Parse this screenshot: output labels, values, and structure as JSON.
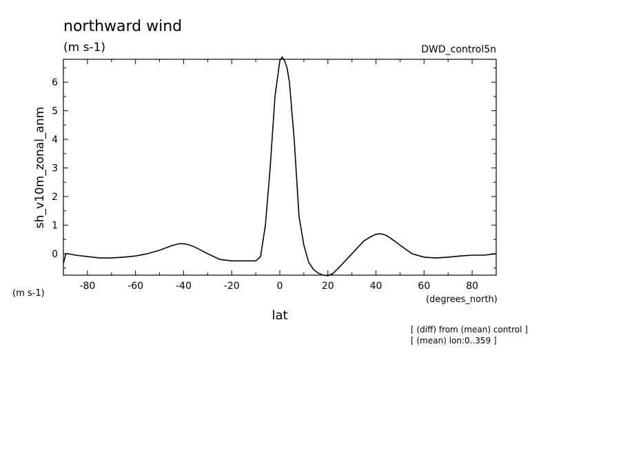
{
  "chart_data": {
    "type": "line",
    "title": "northward wind",
    "units": "(m s-1)",
    "experiment": "DWD_control5n",
    "ylabel": "sh_v10m_zonal_anm",
    "y_units_label": "(m s-1)",
    "xlabel": "lat",
    "x_units_label": "(degrees_north)",
    "notes": [
      "[ (diff) from (mean) control ]",
      "[ (mean) lon:0..359 ]"
    ],
    "xlim": [
      -90,
      90
    ],
    "ylim": [
      -0.75,
      6.8
    ],
    "x_ticks": [
      -80,
      -60,
      -40,
      -20,
      0,
      20,
      40,
      60,
      80
    ],
    "x_tick_labels": [
      "-80",
      "-60",
      "-40",
      "-20",
      "0",
      "20",
      "40",
      "60",
      "80"
    ],
    "y_ticks": [
      0,
      1,
      2,
      3,
      4,
      5,
      6
    ],
    "y_tick_labels": [
      "0",
      "1",
      "2",
      "3",
      "4",
      "5",
      "6"
    ],
    "grid": false,
    "series": [
      {
        "x": [
          -90,
          -89,
          -88,
          -85,
          -80,
          -75,
          -70,
          -65,
          -60,
          -55,
          -50,
          -45,
          -42,
          -40,
          -38,
          -35,
          -30,
          -25,
          -20,
          -15,
          -10,
          -8,
          -6,
          -4,
          -2,
          0,
          1,
          2,
          3,
          4,
          5,
          6,
          8,
          10,
          12,
          14,
          16,
          18,
          20,
          22,
          25,
          30,
          35,
          38,
          40,
          42,
          44,
          46,
          50,
          55,
          60,
          65,
          70,
          75,
          80,
          85,
          88,
          90
        ],
        "y": [
          -0.35,
          0.0,
          0.0,
          -0.05,
          -0.1,
          -0.15,
          -0.15,
          -0.12,
          -0.08,
          0.0,
          0.12,
          0.28,
          0.35,
          0.35,
          0.32,
          0.22,
          0.0,
          -0.2,
          -0.25,
          -0.25,
          -0.25,
          -0.1,
          1.0,
          3.0,
          5.5,
          6.75,
          6.88,
          6.75,
          6.5,
          6.0,
          5.0,
          4.0,
          1.3,
          0.3,
          -0.3,
          -0.55,
          -0.68,
          -0.75,
          -0.77,
          -0.7,
          -0.45,
          0.0,
          0.45,
          0.6,
          0.68,
          0.7,
          0.65,
          0.55,
          0.3,
          0.0,
          -0.12,
          -0.15,
          -0.12,
          -0.08,
          -0.05,
          -0.05,
          -0.02,
          0.0
        ]
      }
    ]
  }
}
